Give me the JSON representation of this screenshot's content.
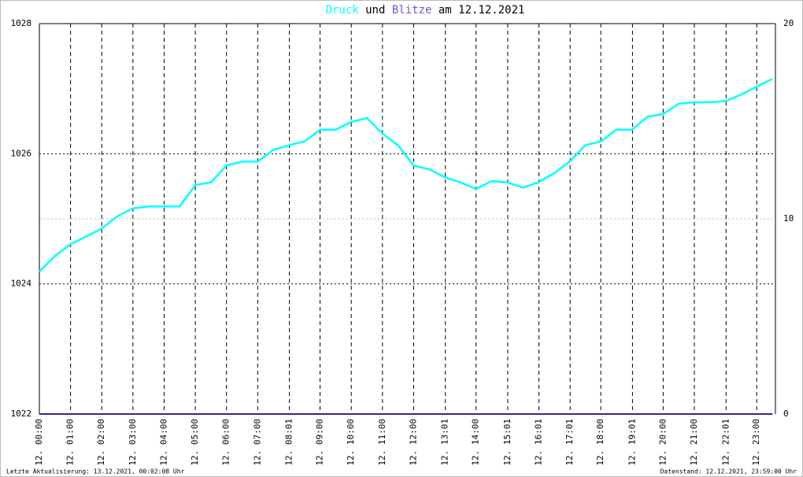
{
  "chart_data": {
    "type": "line",
    "title_connector": "und",
    "title_date": "am 12.12.2021",
    "x": [
      0,
      0.5,
      1,
      1.5,
      2,
      2.5,
      3,
      3.5,
      4,
      4.5,
      5,
      5.5,
      6,
      6.5,
      7,
      7.5,
      8,
      8.5,
      9,
      9.5,
      10,
      10.5,
      11,
      11.5,
      12,
      12.5,
      13,
      13.5,
      14,
      14.5,
      15,
      15.5,
      16,
      16.5,
      17,
      17.5,
      18,
      18.5,
      19,
      19.5,
      20,
      20.5,
      21,
      21.5,
      22,
      22.5,
      23,
      23.5
    ],
    "series": [
      {
        "name": "Druck",
        "color": "#00ffff",
        "axis": "y",
        "values": [
          1024.19,
          1024.43,
          1024.61,
          1024.73,
          1024.85,
          1025.04,
          1025.16,
          1025.19,
          1025.19,
          1025.19,
          1025.52,
          1025.56,
          1025.82,
          1025.88,
          1025.88,
          1026.06,
          1026.13,
          1026.19,
          1026.37,
          1026.37,
          1026.49,
          1026.55,
          1026.31,
          1026.13,
          1025.82,
          1025.76,
          1025.64,
          1025.56,
          1025.46,
          1025.58,
          1025.56,
          1025.48,
          1025.56,
          1025.7,
          1025.88,
          1026.13,
          1026.19,
          1026.37,
          1026.37,
          1026.57,
          1026.61,
          1026.77,
          1026.79,
          1026.79,
          1026.81,
          1026.91,
          1027.03,
          1027.15
        ]
      },
      {
        "name": "Blitze",
        "color": "#2a2a8a",
        "axis": "y2",
        "values": [
          0,
          0,
          0,
          0,
          0,
          0,
          0,
          0,
          0,
          0,
          0,
          0,
          0,
          0,
          0,
          0,
          0,
          0,
          0,
          0,
          0,
          0,
          0,
          0,
          0,
          0,
          0,
          0,
          0,
          0,
          0,
          0,
          0,
          0,
          0,
          0,
          0,
          0,
          0,
          0,
          0,
          0,
          0,
          0,
          0,
          0,
          0,
          0
        ]
      }
    ],
    "xlim": [
      0,
      23.6
    ],
    "xticks": [
      {
        "value": 0,
        "label": "12. 00:00"
      },
      {
        "value": 1,
        "label": "12. 01:00"
      },
      {
        "value": 2,
        "label": "12. 02:00"
      },
      {
        "value": 3,
        "label": "12. 03:00"
      },
      {
        "value": 4,
        "label": "12. 04:00"
      },
      {
        "value": 5,
        "label": "12. 05:00"
      },
      {
        "value": 6,
        "label": "12. 06:00"
      },
      {
        "value": 7,
        "label": "12. 07:00"
      },
      {
        "value": 8.0167,
        "label": "12. 08:01"
      },
      {
        "value": 9,
        "label": "12. 09:00"
      },
      {
        "value": 10,
        "label": "12. 10:00"
      },
      {
        "value": 11,
        "label": "12. 11:00"
      },
      {
        "value": 12,
        "label": "12. 12:00"
      },
      {
        "value": 13.0167,
        "label": "12. 13:01"
      },
      {
        "value": 14,
        "label": "12. 14:00"
      },
      {
        "value": 15.0167,
        "label": "12. 15:01"
      },
      {
        "value": 16.0167,
        "label": "12. 16:01"
      },
      {
        "value": 17.0167,
        "label": "12. 17:01"
      },
      {
        "value": 18,
        "label": "12. 18:00"
      },
      {
        "value": 19.0167,
        "label": "12. 19:01"
      },
      {
        "value": 20,
        "label": "12. 20:00"
      },
      {
        "value": 21,
        "label": "12. 21:00"
      },
      {
        "value": 22.0167,
        "label": "12. 22:01"
      },
      {
        "value": 23,
        "label": "12. 23:00"
      }
    ],
    "ylim": [
      1022,
      1028
    ],
    "yticks": [
      1022,
      1024,
      1026,
      1028
    ],
    "y2lim": [
      0,
      20
    ],
    "y2ticks": [
      0,
      10,
      20
    ],
    "grid": true,
    "footer_left": "Letzte Aktualisierung: 13.12.2021, 00:02:08 Uhr",
    "footer_right": "Datenstand: 12.12.2021, 23:59:00 Uhr"
  }
}
